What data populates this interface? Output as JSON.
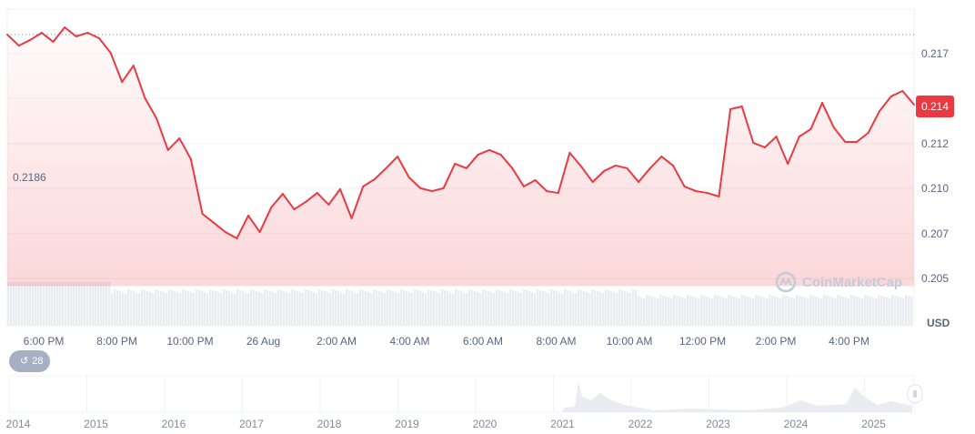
{
  "chart_data": {
    "type": "line",
    "title": "",
    "xlabel": "",
    "ylabel": "USD",
    "ylim": [
      0.2041,
      0.2187
    ],
    "y_ticks": [
      "0.217",
      "0.212",
      "0.210",
      "0.207",
      "0.205"
    ],
    "x_ticks": [
      "6:00 PM",
      "8:00 PM",
      "10:00 PM",
      "26 Aug",
      "2:00 AM",
      "4:00 AM",
      "6:00 AM",
      "8:00 AM",
      "10:00 AM",
      "12:00 PM",
      "2:00 PM",
      "4:00 PM"
    ],
    "open_price": 0.2186,
    "open_price_label": "0.2186",
    "current_price_label": "0.214",
    "grid": true,
    "colors": {
      "down": "#ea3943",
      "up": "#16c784",
      "volume": "#e9ecf1"
    },
    "values": [
      0.21806,
      0.21745,
      0.21776,
      0.21816,
      0.21766,
      0.21846,
      0.21796,
      0.21816,
      0.21786,
      0.21705,
      0.21543,
      0.21634,
      0.21453,
      0.21341,
      0.21165,
      0.2123,
      0.21114,
      0.20811,
      0.20761,
      0.2071,
      0.20675,
      0.20801,
      0.2071,
      0.20847,
      0.20922,
      0.20836,
      0.20877,
      0.20927,
      0.20862,
      0.20948,
      0.20786,
      0.20963,
      0.21003,
      0.21064,
      0.21129,
      0.21013,
      0.20953,
      0.20937,
      0.20953,
      0.21089,
      0.21064,
      0.21139,
      0.21165,
      0.21139,
      0.21064,
      0.20963,
      0.20998,
      0.20937,
      0.20927,
      0.2115,
      0.21074,
      0.20988,
      0.21049,
      0.21079,
      0.21064,
      0.20988,
      0.21064,
      0.21129,
      0.21079,
      0.20963,
      0.20937,
      0.20927,
      0.20907,
      0.21392,
      0.21407,
      0.21205,
      0.2118,
      0.2124,
      0.21089,
      0.2124,
      0.21281,
      0.21427,
      0.21291,
      0.2121,
      0.2121,
      0.2126,
      0.21382,
      0.21463,
      0.21493,
      0.21417
    ]
  },
  "navigator": {
    "years": [
      "2014",
      "2015",
      "2016",
      "2017",
      "2018",
      "2019",
      "2020",
      "2021",
      "2022",
      "2023",
      "2024",
      "2025"
    ]
  },
  "history_badge": {
    "icon": "history-icon",
    "count": "28"
  },
  "watermark": "CoinMarketCap"
}
